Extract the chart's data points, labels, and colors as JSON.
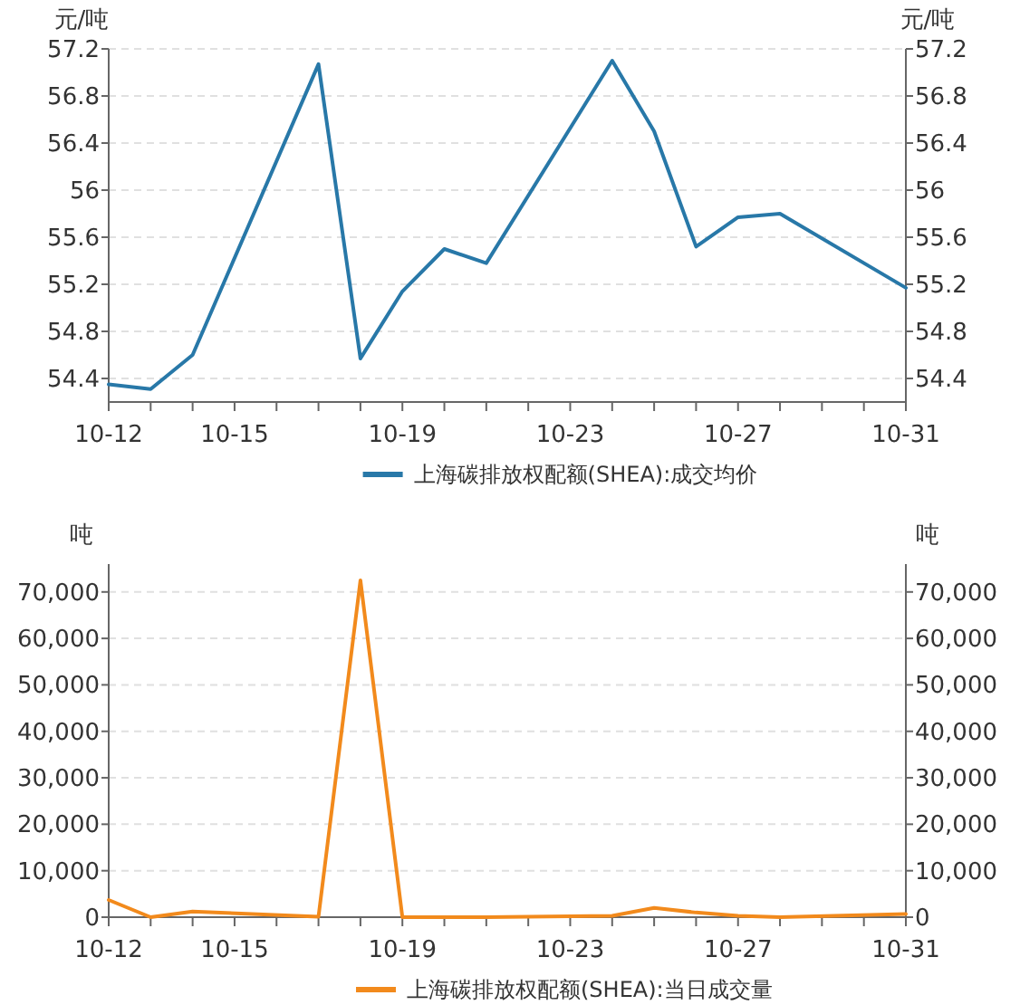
{
  "chart_data": [
    {
      "type": "line",
      "ylabel": "元/吨",
      "y2label": "元/吨",
      "legend": "bottom",
      "grid": "y",
      "marker": "none",
      "line_style": "solid",
      "xlim": [
        "--10-12",
        "--10-31"
      ],
      "xticks": [
        {
          "value": "--10-12",
          "label": "10-12"
        },
        {
          "value": "--10-13",
          "label": null
        },
        {
          "value": "--10-14",
          "label": null
        },
        {
          "value": "--10-15",
          "label": "10-15"
        },
        {
          "value": "--10-16",
          "label": null
        },
        {
          "value": "--10-17",
          "label": null
        },
        {
          "value": "--10-18",
          "label": null
        },
        {
          "value": "--10-19",
          "label": "10-19"
        },
        {
          "value": "--10-20",
          "label": null
        },
        {
          "value": "--10-21",
          "label": null
        },
        {
          "value": "--10-22",
          "label": null
        },
        {
          "value": "--10-23",
          "label": "10-23"
        },
        {
          "value": "--10-24",
          "label": null
        },
        {
          "value": "--10-25",
          "label": null
        },
        {
          "value": "--10-26",
          "label": null
        },
        {
          "value": "--10-27",
          "label": "10-27"
        },
        {
          "value": "--10-28",
          "label": null
        },
        {
          "value": "--10-29",
          "label": null
        },
        {
          "value": "--10-30",
          "label": null
        },
        {
          "value": "--10-31",
          "label": "10-31"
        }
      ],
      "ylim": [
        54.2,
        57.2
      ],
      "yticks": [
        54.4,
        54.8,
        55.2,
        55.6,
        56,
        56.4,
        56.8,
        57.2
      ],
      "y2lim": [
        54.2,
        57.2
      ],
      "y2ticks": [
        54.4,
        54.8,
        55.2,
        55.6,
        56,
        56.4,
        56.8,
        57.2
      ],
      "x": [
        "--10-12",
        "--10-13",
        "--10-14",
        "--10-17",
        "--10-18",
        "--10-19",
        "--10-20",
        "--10-21",
        "--10-24",
        "--10-25",
        "--10-26",
        "--10-27",
        "--10-28",
        "--10-31"
      ],
      "series": [
        {
          "name": "上海碳排放权配额(SHEA):成交均价",
          "color": "#2878a8",
          "values": [
            54.35,
            54.31,
            54.6,
            57.07,
            54.57,
            55.14,
            55.5,
            55.38,
            57.1,
            56.5,
            55.52,
            55.77,
            55.8,
            55.17
          ]
        }
      ]
    },
    {
      "type": "line",
      "ylabel": "吨",
      "y2label": "吨",
      "legend": "bottom",
      "grid": "y",
      "marker": "none",
      "line_style": "solid",
      "xlim": [
        "--10-12",
        "--10-31"
      ],
      "xticks": [
        {
          "value": "--10-12",
          "label": "10-12"
        },
        {
          "value": "--10-13",
          "label": null
        },
        {
          "value": "--10-14",
          "label": null
        },
        {
          "value": "--10-15",
          "label": "10-15"
        },
        {
          "value": "--10-16",
          "label": null
        },
        {
          "value": "--10-17",
          "label": null
        },
        {
          "value": "--10-18",
          "label": null
        },
        {
          "value": "--10-19",
          "label": "10-19"
        },
        {
          "value": "--10-20",
          "label": null
        },
        {
          "value": "--10-21",
          "label": null
        },
        {
          "value": "--10-22",
          "label": null
        },
        {
          "value": "--10-23",
          "label": "10-23"
        },
        {
          "value": "--10-24",
          "label": null
        },
        {
          "value": "--10-25",
          "label": null
        },
        {
          "value": "--10-26",
          "label": null
        },
        {
          "value": "--10-27",
          "label": "10-27"
        },
        {
          "value": "--10-28",
          "label": null
        },
        {
          "value": "--10-29",
          "label": null
        },
        {
          "value": "--10-30",
          "label": null
        },
        {
          "value": "--10-31",
          "label": "10-31"
        }
      ],
      "ylim": [
        0,
        76000
      ],
      "yticks": [
        {
          "value": 0,
          "label": "0"
        },
        {
          "value": 10000,
          "label": "10,000"
        },
        {
          "value": 20000,
          "label": "20,000"
        },
        {
          "value": 30000,
          "label": "30,000"
        },
        {
          "value": 40000,
          "label": "40,000"
        },
        {
          "value": 50000,
          "label": "50,000"
        },
        {
          "value": 60000,
          "label": "60,000"
        },
        {
          "value": 70000,
          "label": "70,000"
        }
      ],
      "y2lim": [
        0,
        76000
      ],
      "y2ticks": [
        {
          "value": 0,
          "label": "0"
        },
        {
          "value": 10000,
          "label": "10,000"
        },
        {
          "value": 20000,
          "label": "20,000"
        },
        {
          "value": 30000,
          "label": "30,000"
        },
        {
          "value": 40000,
          "label": "40,000"
        },
        {
          "value": 50000,
          "label": "50,000"
        },
        {
          "value": 60000,
          "label": "60,000"
        },
        {
          "value": 70000,
          "label": "70,000"
        }
      ],
      "x": [
        "--10-12",
        "--10-13",
        "--10-14",
        "--10-17",
        "--10-18",
        "--10-19",
        "--10-20",
        "--10-21",
        "--10-24",
        "--10-25",
        "--10-26",
        "--10-27",
        "--10-28",
        "--10-31"
      ],
      "series": [
        {
          "name": "上海碳排放权配额(SHEA):当日成交量",
          "color": "#f28a1c",
          "values": [
            3700,
            0,
            1200,
            100,
            72500,
            0,
            0,
            0,
            300,
            2000,
            1000,
            300,
            0,
            700
          ]
        }
      ]
    }
  ]
}
